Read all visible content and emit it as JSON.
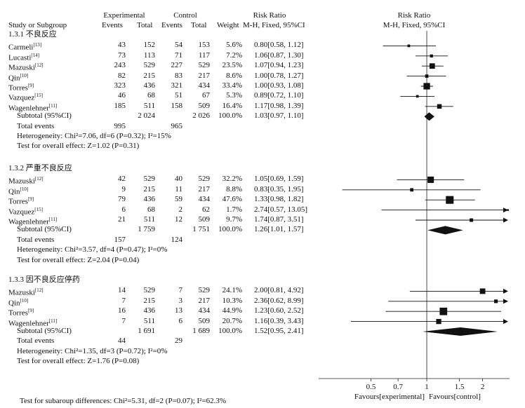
{
  "header": {
    "experimental": "Experimental",
    "control": "Control",
    "risk_ratio": "Risk Ratio",
    "study": "Study or Subgroup",
    "events": "Events",
    "total": "Total",
    "weight": "Weight",
    "method": "M-H, Fixed, 95%CI"
  },
  "groups": [
    {
      "title": "1.3.1 不良反应",
      "rows": [
        {
          "study": "Carmeli",
          "ref": "[13]",
          "e_ev": "43",
          "e_tot": "152",
          "c_ev": "54",
          "c_tot": "153",
          "weight": "5.6%",
          "ci": "0.80[0.58, 1.12]"
        },
        {
          "study": "Lucasti",
          "ref": "[14]",
          "e_ev": "73",
          "e_tot": "113",
          "c_ev": "71",
          "c_tot": "117",
          "weight": "7.2%",
          "ci": "1.06[0.87, 1.30]"
        },
        {
          "study": "Mazuski",
          "ref": "[12]",
          "e_ev": "243",
          "e_tot": "529",
          "c_ev": "227",
          "c_tot": "529",
          "weight": "23.5%",
          "ci": "1.07[0.94, 1.23]"
        },
        {
          "study": "Qin",
          "ref": "[10]",
          "e_ev": "82",
          "e_tot": "215",
          "c_ev": "83",
          "c_tot": "217",
          "weight": "8.6%",
          "ci": "1.00[0.78, 1.27]"
        },
        {
          "study": "Torres",
          "ref": "[9]",
          "e_ev": "323",
          "e_tot": "436",
          "c_ev": "321",
          "c_tot": "434",
          "weight": "33.4%",
          "ci": "1.00[0.93, 1.08]"
        },
        {
          "study": "Vazquez",
          "ref": "[15]",
          "e_ev": "46",
          "e_tot": "68",
          "c_ev": "51",
          "c_tot": "67",
          "weight": "5.3%",
          "ci": "0.89[0.72, 1.10]"
        },
        {
          "study": "Wagenlehner",
          "ref": "[11]",
          "e_ev": "185",
          "e_tot": "511",
          "c_ev": "158",
          "c_tot": "509",
          "weight": "16.4%",
          "ci": "1.17[0.98, 1.39]"
        }
      ],
      "subtotal": {
        "label": "Subtotal (95%CI)",
        "e_tot": "2 024",
        "c_tot": "2 026",
        "weight": "100.0%",
        "ci": "1.03[0.97, 1.10]"
      },
      "total_events": {
        "label": "Total events",
        "e": "995",
        "c": "965"
      },
      "heterogeneity": "Heterogeneity: Chi²=7.06, df=6 (P=0.32); I²=15%",
      "overall": "Test for overall effect: Z=1.02 (P=0.31)"
    },
    {
      "title": "1.3.2 严重不良反应",
      "rows": [
        {
          "study": "Mazuski",
          "ref": "[12]",
          "e_ev": "42",
          "e_tot": "529",
          "c_ev": "40",
          "c_tot": "529",
          "weight": "32.2%",
          "ci": "1.05[0.69, 1.59]"
        },
        {
          "study": "Qin",
          "ref": "[10]",
          "e_ev": "9",
          "e_tot": "215",
          "c_ev": "11",
          "c_tot": "217",
          "weight": "8.8%",
          "ci": "0.83[0.35, 1.95]"
        },
        {
          "study": "Torres",
          "ref": "[9]",
          "e_ev": "79",
          "e_tot": "436",
          "c_ev": "59",
          "c_tot": "434",
          "weight": "47.6%",
          "ci": "1.33[0.98, 1.82]"
        },
        {
          "study": "Vazquez",
          "ref": "[15]",
          "e_ev": "6",
          "e_tot": "68",
          "c_ev": "2",
          "c_tot": "62",
          "weight": "1.7%",
          "ci": "2.74[0.57, 13.05]"
        },
        {
          "study": "Wagenlehner",
          "ref": "[11]",
          "e_ev": "21",
          "e_tot": "511",
          "c_ev": "12",
          "c_tot": "509",
          "weight": "9.7%",
          "ci": "1.74[0.87, 3.51]"
        }
      ],
      "subtotal": {
        "label": "Subtotal (95%CI)",
        "e_tot": "1 759",
        "c_tot": "1 751",
        "weight": "100.0%",
        "ci": "1.26[1.01, 1.57]"
      },
      "total_events": {
        "label": "Total events",
        "e": "157",
        "c": "124"
      },
      "heterogeneity": "Heterogeneity: Chi²=3.57, df=4 (P=0.47); I²=0%",
      "overall": "Test for overall effect: Z=2.04 (P=0.04)"
    },
    {
      "title": "1.3.3 因不良反应停药",
      "rows": [
        {
          "study": "Mazuski",
          "ref": "[12]",
          "e_ev": "14",
          "e_tot": "529",
          "c_ev": "7",
          "c_tot": "529",
          "weight": "24.1%",
          "ci": "2.00[0.81, 4.92]"
        },
        {
          "study": "Qin",
          "ref": "[10]",
          "e_ev": "7",
          "e_tot": "215",
          "c_ev": "3",
          "c_tot": "217",
          "weight": "10.3%",
          "ci": "2.36[0.62, 8.99]"
        },
        {
          "study": "Torres",
          "ref": "[9]",
          "e_ev": "16",
          "e_tot": "436",
          "c_ev": "13",
          "c_tot": "434",
          "weight": "44.9%",
          "ci": "1.23[0.60, 2.52]"
        },
        {
          "study": "Wagenlehner",
          "ref": "[11]",
          "e_ev": "7",
          "e_tot": "511",
          "c_ev": "6",
          "c_tot": "509",
          "weight": "20.7%",
          "ci": "1.16[0.39, 3.43]"
        }
      ],
      "subtotal": {
        "label": "Subtotal (95%CI)",
        "e_tot": "1 691",
        "c_tot": "1 689",
        "weight": "100.0%",
        "ci": "1.52[0.95, 2.41]"
      },
      "total_events": {
        "label": "Total events",
        "e": "44",
        "c": "29"
      },
      "heterogeneity": "Heterogeneity: Chi²=1.35, df=3 (P=0.72); I²=0%",
      "overall": "Test for overall effect: Z=1.76 (P=0.08)"
    }
  ],
  "footer": {
    "subgroup_test": "Test for subaroup differences: Chi²=5.31, df=2 (P=0.07); I²=62.3%"
  },
  "chart_data": {
    "type": "forest",
    "title": "Risk Ratio",
    "subtitle": "M-H, Fixed, 95%CI",
    "scale": "log",
    "xlim": [
      0.28,
      2.7
    ],
    "reference_line": 1,
    "ticks": [
      0.5,
      0.7,
      1,
      1.5,
      2
    ],
    "tick_labels": [
      "0.5",
      "0.7",
      "1",
      "1.5",
      "2"
    ],
    "xlabel_left": "Favours[experimental]",
    "xlabel_right": "Favours[control]",
    "groups": [
      {
        "studies": [
          {
            "rr": 0.8,
            "lo": 0.58,
            "hi": 1.12,
            "w": 5.6
          },
          {
            "rr": 1.06,
            "lo": 0.87,
            "hi": 1.3,
            "w": 7.2
          },
          {
            "rr": 1.07,
            "lo": 0.94,
            "hi": 1.23,
            "w": 23.5
          },
          {
            "rr": 1.0,
            "lo": 0.78,
            "hi": 1.27,
            "w": 8.6
          },
          {
            "rr": 1.0,
            "lo": 0.93,
            "hi": 1.08,
            "w": 33.4
          },
          {
            "rr": 0.89,
            "lo": 0.72,
            "hi": 1.1,
            "w": 5.3
          },
          {
            "rr": 1.17,
            "lo": 0.98,
            "hi": 1.39,
            "w": 16.4
          }
        ],
        "pooled": {
          "rr": 1.03,
          "lo": 0.97,
          "hi": 1.1
        }
      },
      {
        "studies": [
          {
            "rr": 1.05,
            "lo": 0.69,
            "hi": 1.59,
            "w": 32.2
          },
          {
            "rr": 0.83,
            "lo": 0.35,
            "hi": 1.95,
            "w": 8.8
          },
          {
            "rr": 1.33,
            "lo": 0.98,
            "hi": 1.82,
            "w": 47.6
          },
          {
            "rr": 2.74,
            "lo": 0.57,
            "hi": 13.05,
            "w": 1.7
          },
          {
            "rr": 1.74,
            "lo": 0.87,
            "hi": 3.51,
            "w": 9.7
          }
        ],
        "pooled": {
          "rr": 1.26,
          "lo": 1.01,
          "hi": 1.57
        }
      },
      {
        "studies": [
          {
            "rr": 2.0,
            "lo": 0.81,
            "hi": 4.92,
            "w": 24.1
          },
          {
            "rr": 2.36,
            "lo": 0.62,
            "hi": 8.99,
            "w": 10.3
          },
          {
            "rr": 1.23,
            "lo": 0.6,
            "hi": 2.52,
            "w": 44.9
          },
          {
            "rr": 1.16,
            "lo": 0.39,
            "hi": 3.43,
            "w": 20.7
          }
        ],
        "pooled": {
          "rr": 1.52,
          "lo": 0.95,
          "hi": 2.41
        }
      }
    ]
  }
}
